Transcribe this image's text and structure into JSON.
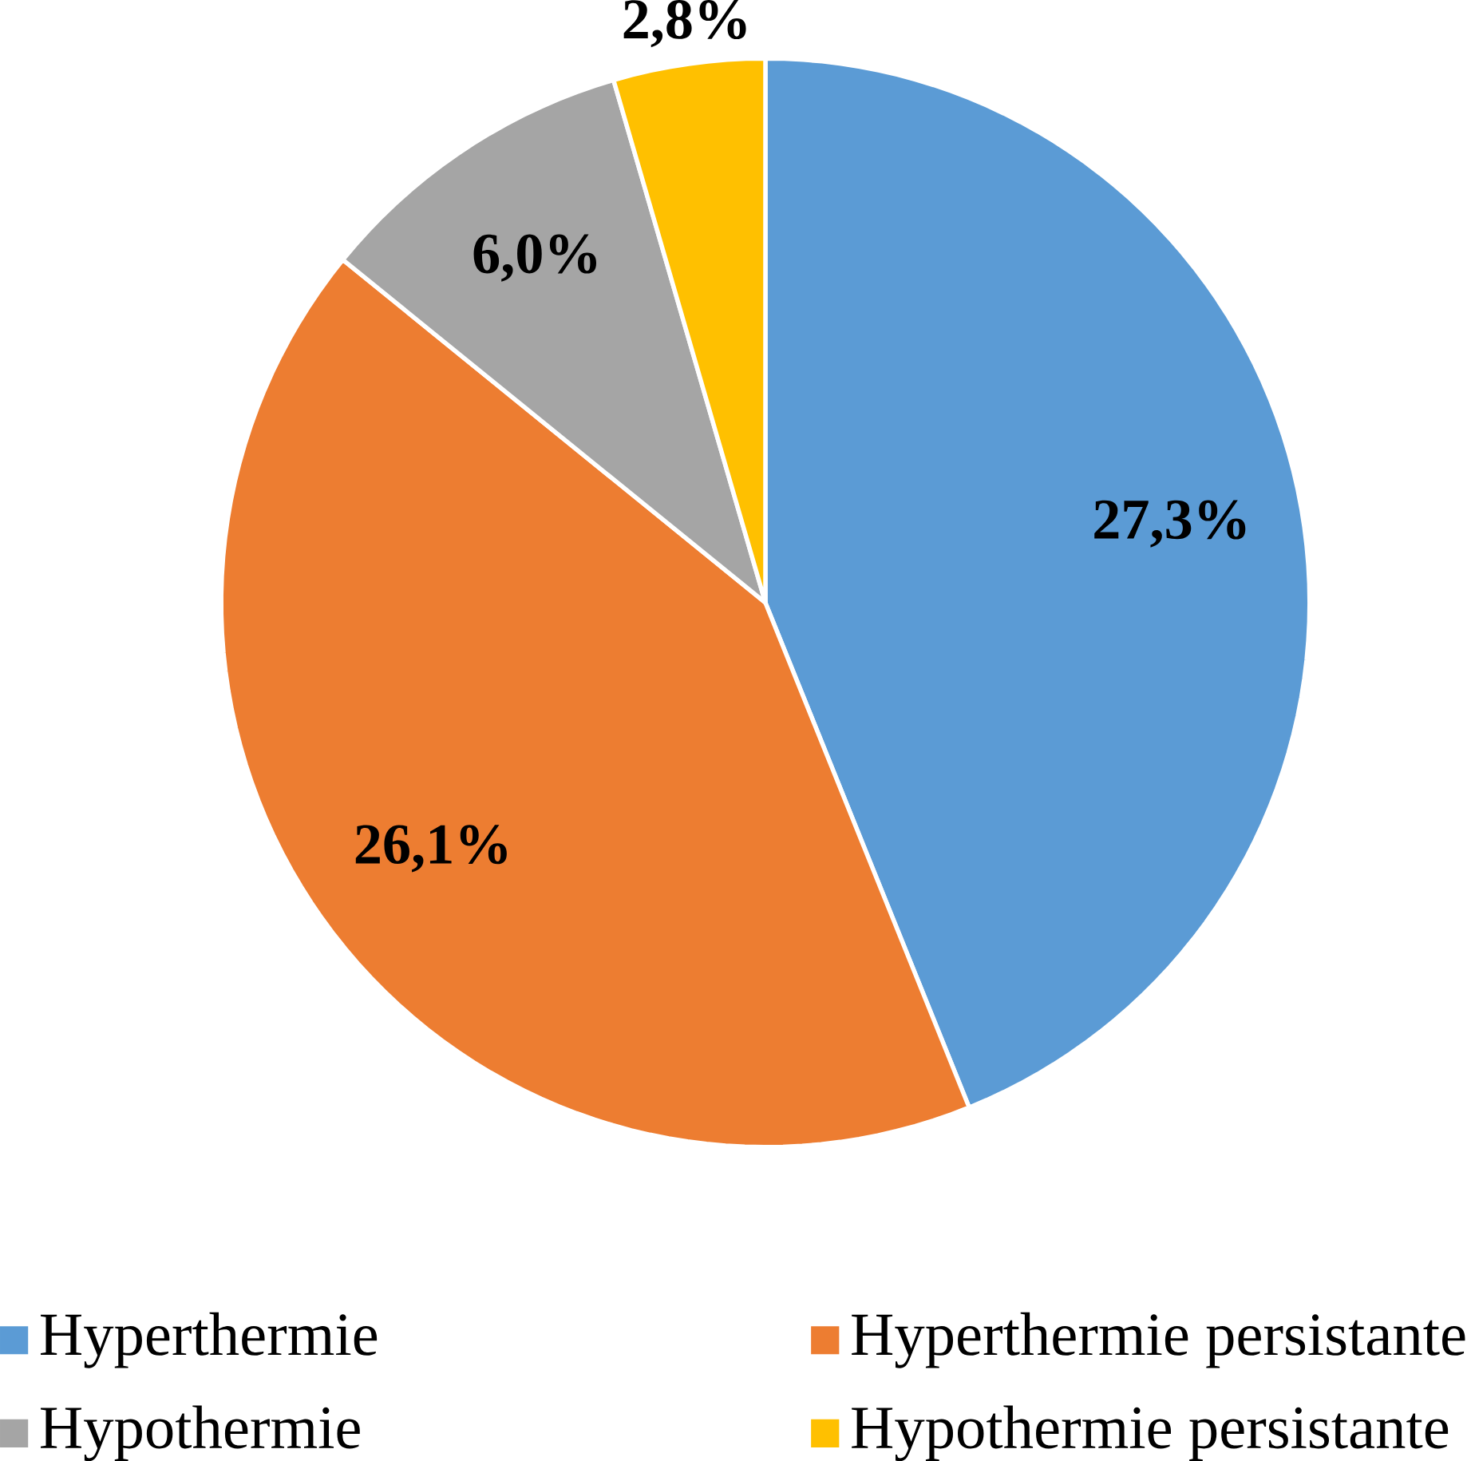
{
  "chart_data": {
    "type": "pie",
    "categories": [
      "Hyperthermie",
      "Hyperthermie persistante",
      "Hypothermie",
      "Hypothermie persistante"
    ],
    "values": [
      27.3,
      26.1,
      6.0,
      2.8
    ],
    "colors": [
      "#5b9bd5",
      "#ed7d31",
      "#a5a5a5",
      "#ffc000"
    ],
    "value_labels": [
      "27,3%",
      "26,1%",
      "6,0%",
      "2,8%"
    ],
    "legend": "bottom"
  }
}
